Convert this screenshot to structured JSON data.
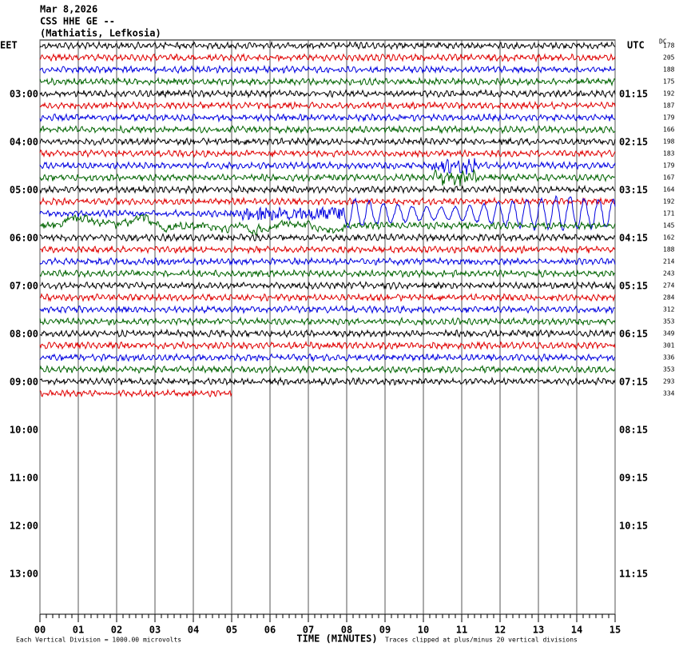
{
  "chart_data": {
    "type": "helicorder",
    "title_lines": [
      "Mar 8,2026",
      "CSS HHE GE --",
      "(Mathiatis, Lefkosia)"
    ],
    "left_zone": "EET",
    "right_zone": "UTC",
    "dc_label": "DC",
    "xlabel": "TIME (MINUTES)",
    "scale_note": "Each Vertical Division = 1000.00 microvolts",
    "clip_note": "Traces clipped at plus/minus 20 vertical divisions",
    "xlim": [
      0,
      15
    ],
    "xticks": [
      {
        "value": 0,
        "label": "00"
      },
      {
        "value": 1,
        "label": "01"
      },
      {
        "value": 2,
        "label": "02"
      },
      {
        "value": 3,
        "label": "03"
      },
      {
        "value": 4,
        "label": "04"
      },
      {
        "value": 5,
        "label": "05"
      },
      {
        "value": 6,
        "label": "06"
      },
      {
        "value": 7,
        "label": "07"
      },
      {
        "value": 8,
        "label": "08"
      },
      {
        "value": 9,
        "label": "09"
      },
      {
        "value": 10,
        "label": "10"
      },
      {
        "value": 11,
        "label": "11"
      },
      {
        "value": 12,
        "label": "12"
      },
      {
        "value": 13,
        "label": "13"
      },
      {
        "value": 14,
        "label": "14"
      },
      {
        "value": 15,
        "label": "15"
      }
    ],
    "left_times": [
      "03:00",
      "04:00",
      "05:00",
      "06:00",
      "07:00",
      "08:00",
      "09:00",
      "10:00",
      "11:00",
      "12:00",
      "13:00"
    ],
    "right_times": [
      "01:15",
      "02:15",
      "03:15",
      "04:15",
      "05:15",
      "06:15",
      "07:15",
      "08:15",
      "09:15",
      "10:15",
      "11:15"
    ],
    "colors": [
      "#000000",
      "#e00000",
      "#0000e0",
      "#006400"
    ],
    "dc": [
      178,
      205,
      188,
      175,
      192,
      187,
      179,
      166,
      198,
      183,
      179,
      167,
      164,
      192,
      171,
      145,
      162,
      188,
      214,
      243,
      274,
      284,
      312,
      353,
      349,
      301,
      336,
      353,
      293,
      334
    ],
    "last_trace_minutes": 5
  }
}
